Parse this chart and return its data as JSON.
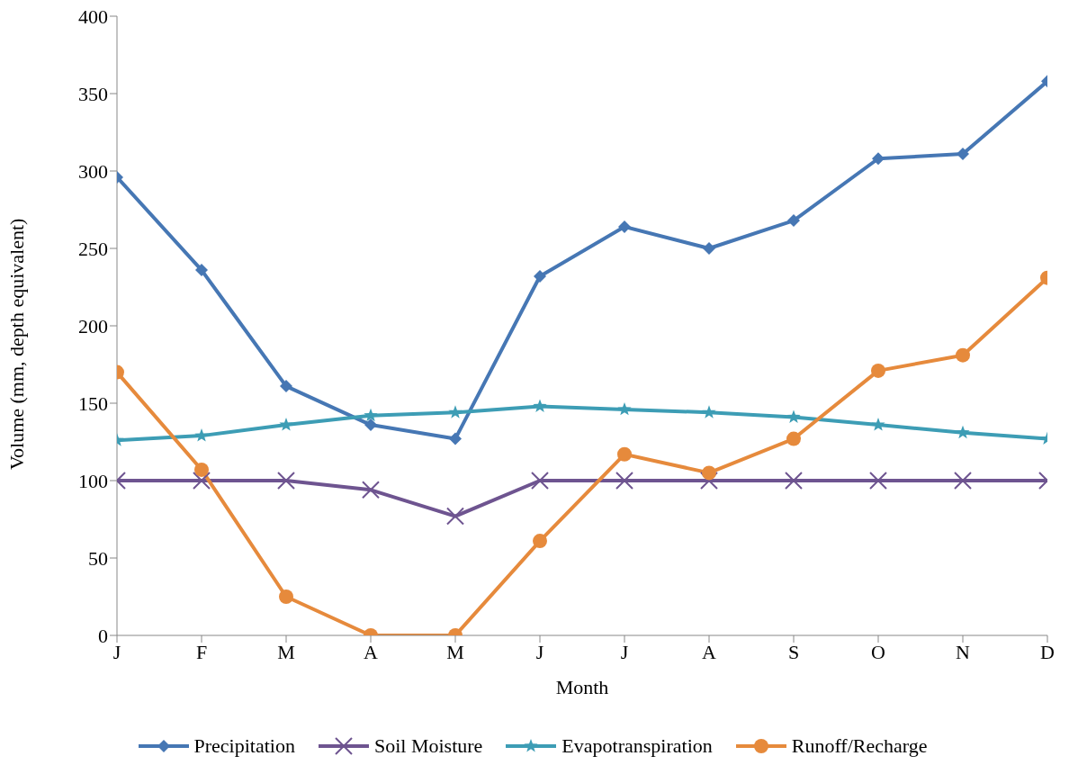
{
  "chart_data": {
    "type": "line",
    "xlabel": "Month",
    "ylabel": "Volume (mm, depth equivalent)",
    "categories": [
      "J",
      "F",
      "M",
      "A",
      "M",
      "J",
      "J",
      "A",
      "S",
      "O",
      "N",
      "D"
    ],
    "ylim": [
      0,
      400
    ],
    "yticks": [
      0,
      50,
      100,
      150,
      200,
      250,
      300,
      350,
      400
    ],
    "grid": false,
    "legend": "bottom",
    "series": [
      {
        "name": "Precipitation",
        "color": "#4677b4",
        "marker": "diamond",
        "values": [
          296,
          236,
          161,
          136,
          127,
          232,
          264,
          250,
          268,
          308,
          311,
          358
        ]
      },
      {
        "name": "Soil Moisture",
        "color": "#6e5490",
        "marker": "cross",
        "values": [
          100,
          100,
          100,
          94,
          77,
          100,
          100,
          100,
          100,
          100,
          100,
          100
        ]
      },
      {
        "name": "Evapotranspiration",
        "color": "#3d9db5",
        "marker": "star",
        "values": [
          126,
          129,
          136,
          142,
          144,
          148,
          146,
          144,
          141,
          136,
          131,
          127
        ]
      },
      {
        "name": "Runoff/Recharge",
        "color": "#e68a3c",
        "marker": "circle",
        "values": [
          170,
          107,
          25,
          0,
          0,
          61,
          117,
          105,
          127,
          171,
          181,
          231
        ]
      }
    ]
  }
}
